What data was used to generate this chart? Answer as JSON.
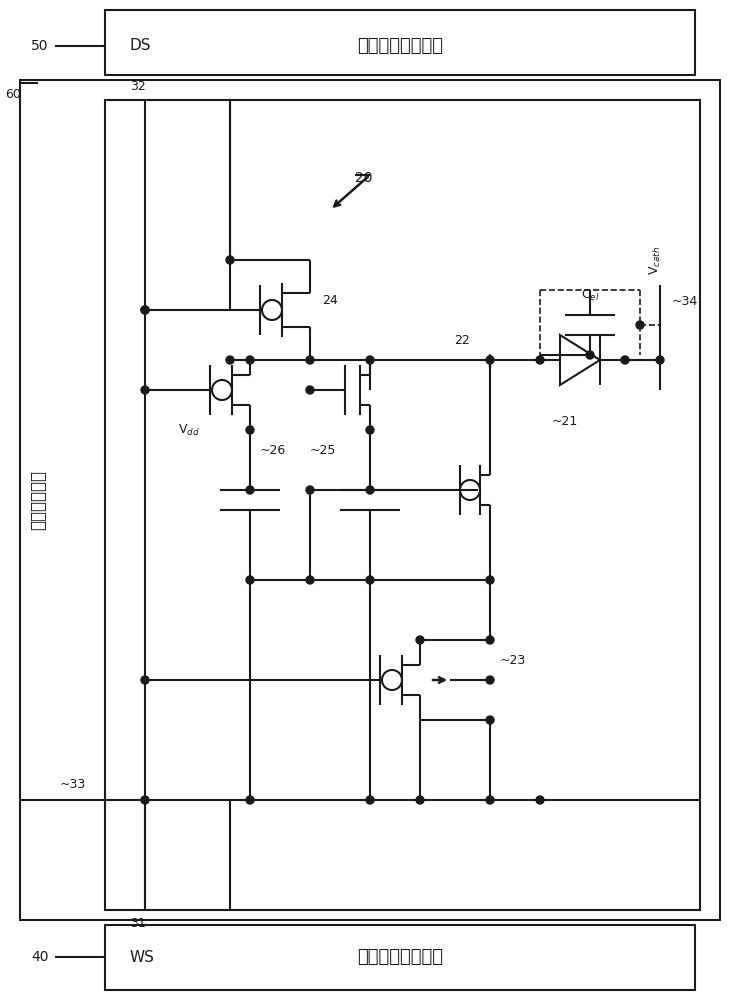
{
  "bg_color": "#ffffff",
  "line_color": "#1a1a1a",
  "top_box_num": "50",
  "top_box_signal": "DS",
  "top_box_text": "数据信号线驱动器",
  "bottom_box_num": "40",
  "bottom_box_signal": "WS",
  "bottom_box_text": "扫描信号线驱动器",
  "left_label": "信号输出单元",
  "label_20": "20",
  "label_21": "21",
  "label_22": "22",
  "label_23": "23",
  "label_24": "24",
  "label_25": "25",
  "label_26": "26",
  "label_31": "31",
  "label_32": "32",
  "label_33": "33",
  "label_34": "34",
  "label_60": "60",
  "vdd": "V$_{dd}$",
  "cel": "C$_{el}$",
  "vcath": "V$_{cath}$"
}
